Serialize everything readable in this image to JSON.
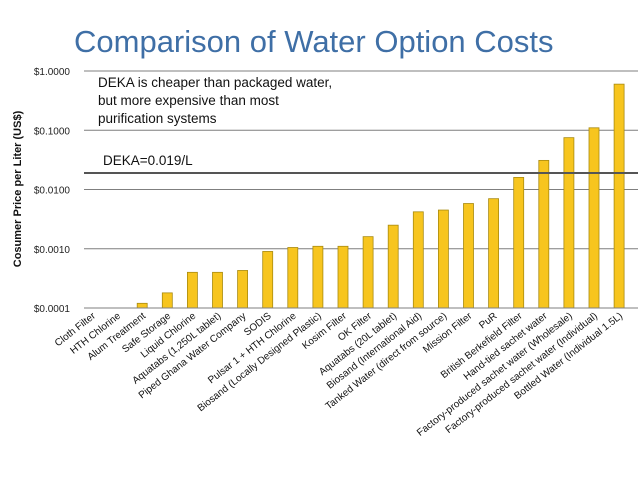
{
  "slide": {
    "title": "Comparison of Water Option Costs"
  },
  "colors": {
    "title": "#3f6fa6",
    "bar_fill": "#f7c51e",
    "bar_stroke": "#a88a10",
    "grid": "#7f7f7f",
    "reference_line": "#555555"
  },
  "chart_data": {
    "type": "bar",
    "title": "",
    "xlabel": "",
    "ylabel": "Cosumer Price per Liter (US$)",
    "y_scale": "log",
    "ylim": [
      0.0001,
      1.0
    ],
    "y_ticks": [
      0.0001,
      0.001,
      0.01,
      0.1,
      1.0
    ],
    "y_tick_labels": [
      "$0.0001",
      "$0.0010",
      "$0.0100",
      "$0.1000",
      "$1.0000"
    ],
    "grid": true,
    "legend": "none",
    "categories": [
      "Cloth Filter",
      "HTH Chlorine",
      "Alum Treatment",
      "Safe Storage",
      "Liquid Chlorine",
      "Aquatabs (1,250L tablet)",
      "Piped Ghana Water Company",
      "SODIS",
      "Pulsar 1 + HTH Chlorine",
      "Biosand (Locally Designed Plastic)",
      "Kosim Filter",
      "OK Filter",
      "Aquatabs (20L tablet)",
      "Biosand (International Aid)",
      "Tanked Water (direct from source)",
      "Mission Filter",
      "PuR",
      "British Berkefield Filter",
      "Hand-tied sachet water",
      "Factory-produced sachet water (Wholesale)",
      "Factory-produced sachet water (Individual)",
      "Bottled Water (Individual 1.5L)"
    ],
    "values": [
      0.0001,
      0.0001,
      0.00012,
      0.00018,
      0.0004,
      0.0004,
      0.00043,
      0.0009,
      0.00105,
      0.0011,
      0.0011,
      0.0016,
      0.0025,
      0.0042,
      0.0045,
      0.0058,
      0.007,
      0.016,
      0.031,
      0.075,
      0.11,
      0.6
    ],
    "annotations": [
      {
        "text": "DEKA is cheaper than packaged water, but more expensive than most purification systems"
      },
      {
        "text": "DEKA=0.019/L",
        "value": 0.019
      }
    ]
  }
}
